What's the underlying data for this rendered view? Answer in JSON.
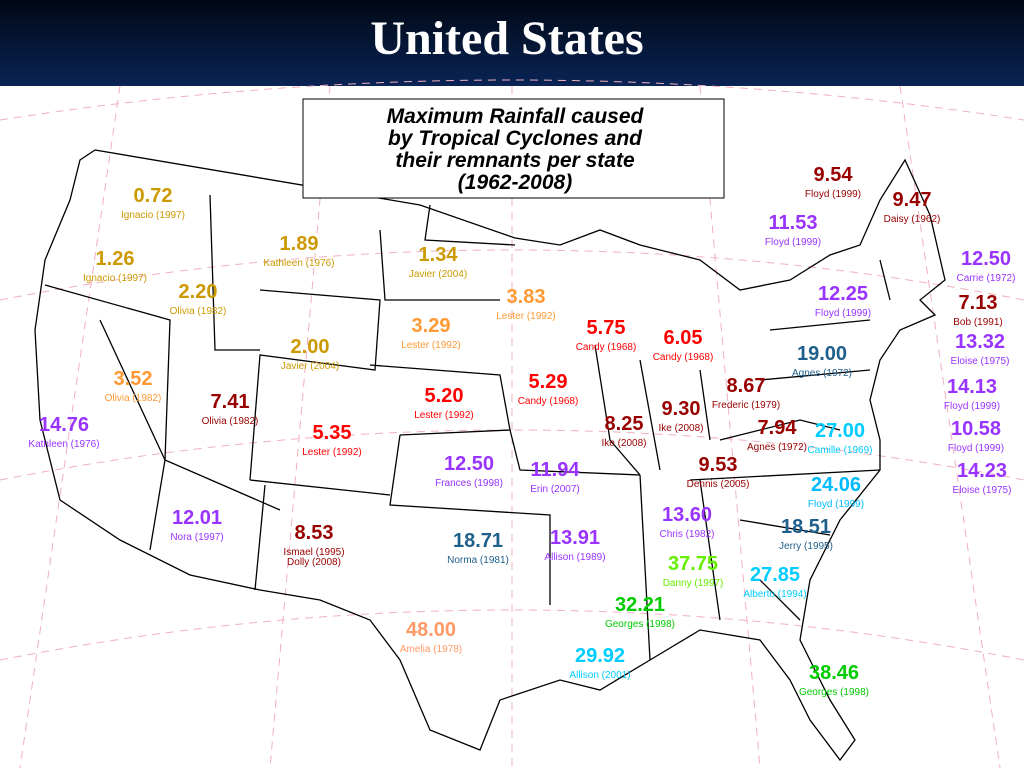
{
  "title": "United States",
  "legend_box": {
    "lines": [
      "Maximum Rainfall caused",
      "by Tropical Cyclones and",
      "their remnants per state",
      "(1962-2008)"
    ]
  },
  "labels": [
    {
      "value": "0.72",
      "storms": [
        "Ignacio (1997)"
      ],
      "color": "#cc9900"
    },
    {
      "value": "1.26",
      "storms": [
        "Ignacio (1997)"
      ],
      "color": "#cc9900"
    },
    {
      "value": "2.20",
      "storms": [
        "Olivia (1982)"
      ],
      "color": "#cc9900"
    },
    {
      "value": "1.89",
      "storms": [
        "Kathleen (1976)"
      ],
      "color": "#cc9900"
    },
    {
      "value": "1.34",
      "storms": [
        "Javier (2004)"
      ],
      "color": "#cc9900"
    },
    {
      "value": "3.83",
      "storms": [
        "Lester (1992)"
      ],
      "color": "#ff9933"
    },
    {
      "value": "3.29",
      "storms": [
        "Lester (1992)"
      ],
      "color": "#ff9933"
    },
    {
      "value": "2.00",
      "storms": [
        "Javier (2004)"
      ],
      "color": "#cc9900"
    },
    {
      "value": "3.52",
      "storms": [
        "Olivia (1982)"
      ],
      "color": "#ff9933"
    },
    {
      "value": "7.41",
      "storms": [
        "Olivia (1982)"
      ],
      "color": "#990000"
    },
    {
      "value": "14.76",
      "storms": [
        "Kathleen (1976)"
      ],
      "color": "#9933ff"
    },
    {
      "value": "5.35",
      "storms": [
        "Lester (1992)"
      ],
      "color": "#ff0000"
    },
    {
      "value": "5.20",
      "storms": [
        "Lester (1992)"
      ],
      "color": "#ff0000"
    },
    {
      "value": "5.29",
      "storms": [
        "Candy (1968)"
      ],
      "color": "#ff0000"
    },
    {
      "value": "5.75",
      "storms": [
        "Candy (1968)"
      ],
      "color": "#ff0000"
    },
    {
      "value": "6.05",
      "storms": [
        "Candy (1968)"
      ],
      "color": "#ff0000"
    },
    {
      "value": "8.25",
      "storms": [
        "Ike (2008)"
      ],
      "color": "#990000"
    },
    {
      "value": "9.30",
      "storms": [
        "Ike (2008)"
      ],
      "color": "#990000"
    },
    {
      "value": "8.67",
      "storms": [
        "Frederic (1979)"
      ],
      "color": "#990000"
    },
    {
      "value": "7.94",
      "storms": [
        "Agnes (1972)"
      ],
      "color": "#990000"
    },
    {
      "value": "9.53",
      "storms": [
        "Dennis (2005)"
      ],
      "color": "#990000"
    },
    {
      "value": "12.50",
      "storms": [
        "Frances (1998)"
      ],
      "color": "#9933ff"
    },
    {
      "value": "11.94",
      "storms": [
        "Erin (2007)"
      ],
      "color": "#9933ff"
    },
    {
      "value": "12.01",
      "storms": [
        "Nora (1997)"
      ],
      "color": "#9933ff"
    },
    {
      "value": "8.53",
      "storms": [
        "Ismael (1995)",
        "Dolly (2008)"
      ],
      "color": "#990000"
    },
    {
      "value": "18.71",
      "storms": [
        "Norma (1981)"
      ],
      "color": "#1f5f8b"
    },
    {
      "value": "13.91",
      "storms": [
        "Allison (1989)"
      ],
      "color": "#9933ff"
    },
    {
      "value": "13.60",
      "storms": [
        "Chris (1982)"
      ],
      "color": "#9933ff"
    },
    {
      "value": "37.75",
      "storms": [
        "Danny (1997)"
      ],
      "color": "#66ee00"
    },
    {
      "value": "32.21",
      "storms": [
        "Georges (1998)"
      ],
      "color": "#00cc00"
    },
    {
      "value": "27.85",
      "storms": [
        "Alberto (1994)"
      ],
      "color": "#00ccff"
    },
    {
      "value": "18.51",
      "storms": [
        "Jerry (1995)"
      ],
      "color": "#1f5f8b"
    },
    {
      "value": "24.06",
      "storms": [
        "Floyd (1999)"
      ],
      "color": "#00bbff"
    },
    {
      "value": "27.00",
      "storms": [
        "Camille (1969)"
      ],
      "color": "#00ccff"
    },
    {
      "value": "19.00",
      "storms": [
        "Agnes (1972)"
      ],
      "color": "#1f5f8b"
    },
    {
      "value": "29.92",
      "storms": [
        "Allison (2001)"
      ],
      "color": "#00ccff"
    },
    {
      "value": "38.46",
      "storms": [
        "Georges (1998)"
      ],
      "color": "#00cc00"
    },
    {
      "value": "48.00",
      "storms": [
        "Amelia (1978)"
      ],
      "color": "#ff9966"
    },
    {
      "value": "9.54",
      "storms": [
        "Floyd (1999)"
      ],
      "color": "#990000"
    },
    {
      "value": "9.47",
      "storms": [
        "Daisy (1962)"
      ],
      "color": "#990000"
    },
    {
      "value": "11.53",
      "storms": [
        "Floyd (1999)"
      ],
      "color": "#9933ff"
    },
    {
      "value": "12.25",
      "storms": [
        "Floyd (1999)"
      ],
      "color": "#9933ff"
    },
    {
      "value": "12.50",
      "storms": [
        "Carrie (1972)"
      ],
      "color": "#9933ff"
    },
    {
      "value": "7.13",
      "storms": [
        "Bob (1991)"
      ],
      "color": "#990000"
    },
    {
      "value": "13.32",
      "storms": [
        "Eloise (1975)"
      ],
      "color": "#9933ff"
    },
    {
      "value": "14.13",
      "storms": [
        "Floyd (1999)"
      ],
      "color": "#9933ff"
    },
    {
      "value": "10.58",
      "storms": [
        "Floyd (1999)"
      ],
      "color": "#9933ff"
    },
    {
      "value": "14.23",
      "storms": [
        "Eloise (1975)"
      ],
      "color": "#9933ff"
    }
  ]
}
